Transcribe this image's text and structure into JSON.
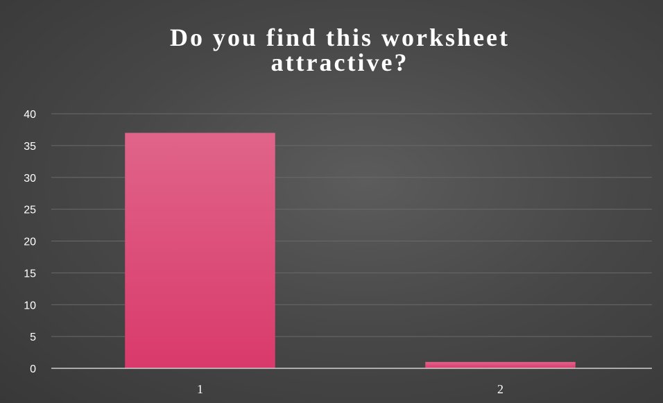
{
  "chart_data": {
    "type": "bar",
    "title_line1": "Do you find this worksheet",
    "title_line2": "attractive?",
    "categories": [
      "1",
      "2"
    ],
    "values": [
      37,
      1
    ],
    "ylim": [
      0,
      40
    ],
    "yticks": [
      0,
      5,
      10,
      15,
      20,
      25,
      30,
      35,
      40
    ],
    "xlabel": "",
    "ylabel": "",
    "grid": true,
    "legend": "none",
    "colors": {
      "background": "#474747",
      "bar_top": "#e0648a",
      "bar_bottom": "#d93a6b",
      "grid": "#6a6a6a",
      "axis": "#d0d0d0",
      "text": "#ffffff"
    }
  }
}
